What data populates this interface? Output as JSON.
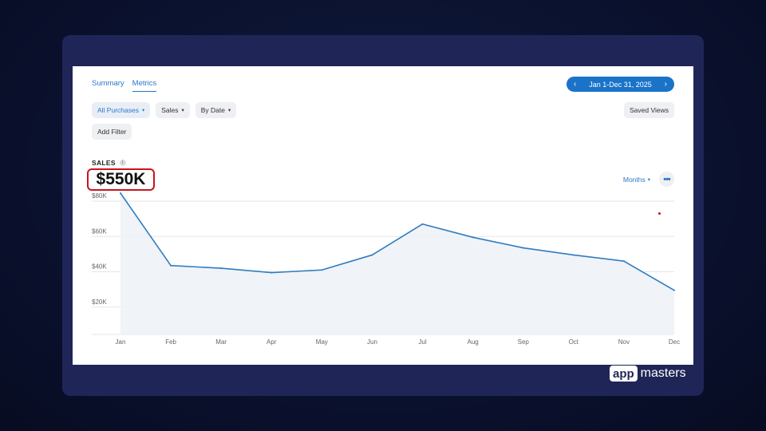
{
  "tabs": [
    {
      "label": "Summary"
    },
    {
      "label": "Metrics"
    }
  ],
  "date_range": {
    "label": "Jan 1-Dec 31, 2025"
  },
  "filters": {
    "all_purchases": "All Purchases",
    "sales": "Sales",
    "by_date": "By Date",
    "add_filter": "Add Filter",
    "saved_views": "Saved Views"
  },
  "metric": {
    "label": "SALES",
    "total": "$550K",
    "granularity": "Months"
  },
  "logo": {
    "app": "app",
    "masters": "masters"
  },
  "colors": {
    "accent": "#1a73c9",
    "highlight": "#c8141e",
    "line": "#2f7cc0"
  },
  "chart_data": {
    "type": "area",
    "categories": [
      "Jan",
      "Feb",
      "Mar",
      "Apr",
      "May",
      "Jun",
      "Jul",
      "Aug",
      "Sep",
      "Oct",
      "Nov",
      "Dec"
    ],
    "values": [
      80000,
      39000,
      37500,
      35000,
      36500,
      45000,
      62500,
      55000,
      49000,
      45000,
      41500,
      25000
    ],
    "ytick_labels": [
      "$20K",
      "$40K",
      "$60K",
      "$80K"
    ],
    "ylim": [
      0,
      80000
    ],
    "grid": true
  }
}
